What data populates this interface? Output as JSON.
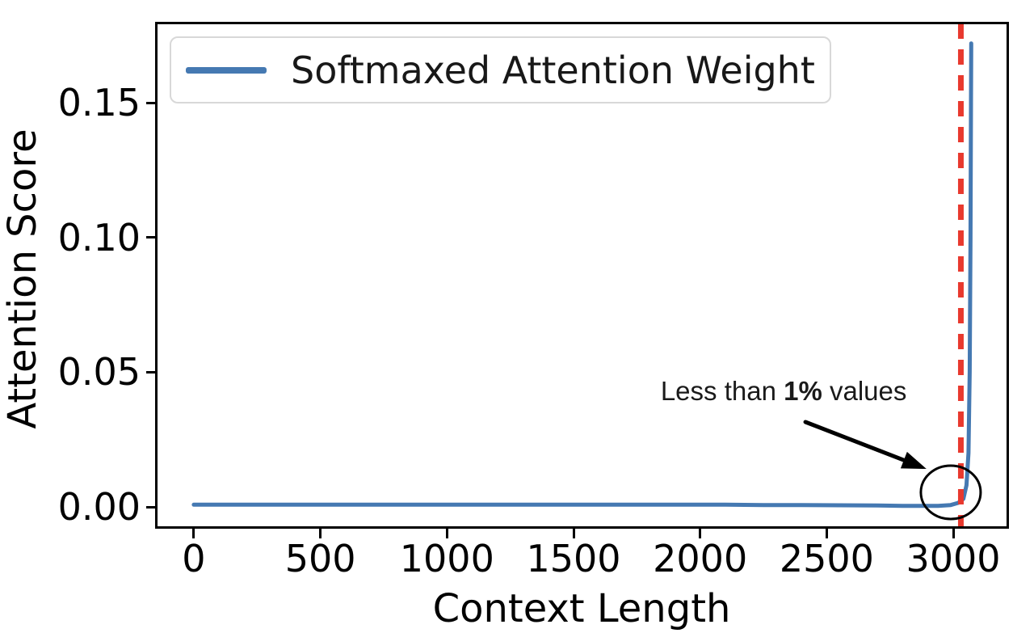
{
  "figure": {
    "background": "#ffffff"
  },
  "chart_data": {
    "type": "line",
    "title": "",
    "xlabel": "Context Length",
    "ylabel": "Attention Score",
    "xlim": [
      -153,
      3220
    ],
    "ylim": [
      -0.0081,
      0.18
    ],
    "grid": false,
    "x_ticks": [
      0,
      500,
      1000,
      1500,
      2000,
      2500,
      3000
    ],
    "y_ticks": [
      0.0,
      0.05,
      0.1,
      0.15
    ],
    "y_tick_labels": [
      "0.00",
      "0.05",
      "0.10",
      "0.15"
    ],
    "legend": {
      "position": "upper left",
      "entries": [
        {
          "label": "Softmaxed Attention Weight",
          "color": "#4579b2"
        }
      ]
    },
    "series": [
      {
        "name": "Softmaxed Attention Weight",
        "color": "#4579b2",
        "line_width": 5,
        "x": [
          0,
          150,
          300,
          450,
          600,
          750,
          900,
          1050,
          1200,
          1350,
          1500,
          1650,
          1800,
          1950,
          2100,
          2250,
          2400,
          2550,
          2700,
          2800,
          2880,
          2940,
          2990,
          3020,
          3040,
          3052,
          3060,
          3065,
          3068,
          3070,
          3071
        ],
        "y": [
          0.0008,
          0.0008,
          0.0008,
          0.0008,
          0.0008,
          0.0008,
          0.0008,
          0.0008,
          0.0008,
          0.0008,
          0.0008,
          0.0008,
          0.0008,
          0.0008,
          0.0008,
          0.0007,
          0.0007,
          0.0006,
          0.0005,
          0.0004,
          0.0004,
          0.0004,
          0.0007,
          0.0015,
          0.003,
          0.008,
          0.02,
          0.05,
          0.1,
          0.15,
          0.172
        ]
      }
    ],
    "vline": {
      "x": 3030,
      "color": "#e8392e",
      "style": "dashed",
      "width": 7,
      "dash": "19 13"
    },
    "annotation": {
      "full_text": "Less than 1% values",
      "text_prefix": "Less than ",
      "text_bold": "1%",
      "text_suffix": " values",
      "text_center": [
        2330,
        0.0429
      ],
      "arrow_start": [
        2416,
        0.0315
      ],
      "arrow_end": [
        2894,
        0.0141
      ],
      "circle_center": [
        2990,
        0.0054
      ],
      "circle_radius_px": [
        37,
        33
      ]
    }
  }
}
